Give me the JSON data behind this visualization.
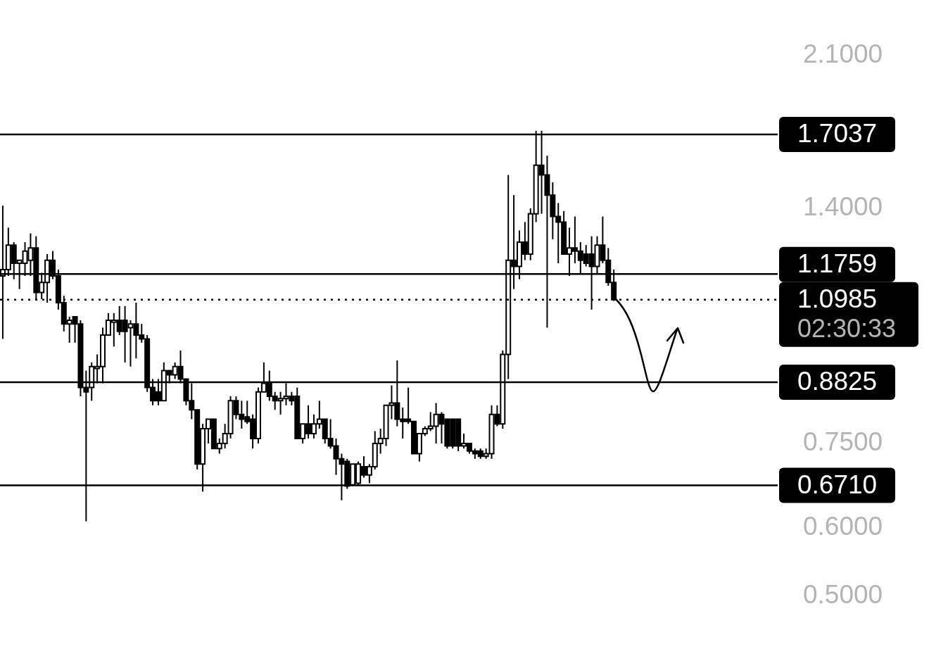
{
  "chart_data": {
    "type": "candlestick",
    "color": "#000000",
    "log": "y",
    "tick_labels": "y",
    "ylim": [
      0.5,
      2.1
    ],
    "yticks": [
      {
        "value": 0.5,
        "label": "0.5000"
      },
      {
        "value": 0.6,
        "label": "0.6000"
      },
      {
        "value": 0.75,
        "label": "0.7500"
      },
      {
        "value": 1.4,
        "label": "1.4000"
      },
      {
        "value": 2.1,
        "label": "2.1000"
      }
    ],
    "ref_lines": [
      {
        "axis": "y",
        "value": 1.7037,
        "label": "1.7037",
        "color": "#000000"
      },
      {
        "axis": "y",
        "value": 1.1759,
        "label": "1.1759",
        "color": "#000000"
      },
      {
        "axis": "y",
        "value": 1.0985,
        "label": "1.0985",
        "color": "#000000",
        "line_style": "dotted"
      },
      {
        "axis": "y",
        "value": 0.8825,
        "label": "0.8825",
        "color": "#000000"
      },
      {
        "axis": "y",
        "value": 0.671,
        "label": "0.6710",
        "color": "#000000"
      }
    ],
    "annotations": [
      "02:30:33"
    ],
    "categories": [
      null,
      null,
      null,
      null,
      null,
      null,
      null,
      null,
      null,
      null,
      null,
      null,
      null,
      null,
      null,
      null,
      null,
      null,
      null,
      null,
      null,
      null,
      null,
      null,
      null,
      null,
      null,
      null,
      null,
      null,
      null,
      null,
      null,
      null,
      null,
      null,
      null,
      null,
      null,
      null,
      null,
      null,
      null,
      null,
      null,
      null,
      null,
      null,
      null,
      null,
      null,
      null,
      null,
      null,
      null,
      null,
      null,
      null,
      null,
      null,
      null,
      null,
      null,
      null,
      null,
      null,
      null,
      null,
      null,
      null,
      null,
      null,
      null,
      null,
      null,
      null,
      null,
      null,
      null,
      null,
      null,
      null,
      null,
      null,
      null,
      null,
      null,
      null,
      null,
      null,
      null,
      null,
      null,
      null,
      null,
      null,
      null,
      null,
      null,
      null,
      null,
      null,
      null,
      null,
      null,
      null,
      null,
      null,
      null,
      null,
      null,
      null,
      null,
      null,
      null,
      null,
      null,
      null,
      null,
      null,
      null,
      null,
      null,
      null,
      null,
      null,
      null,
      null,
      null,
      null,
      null,
      null,
      null,
      null,
      null,
      null,
      null,
      null,
      null,
      null
    ],
    "ohlc": [
      [
        1.17,
        1.41,
        0.99,
        1.19
      ],
      [
        1.19,
        1.33,
        1.17,
        1.27
      ],
      [
        1.27,
        1.28,
        1.16,
        1.21
      ],
      [
        1.21,
        1.22,
        1.13,
        1.22
      ],
      [
        1.21,
        1.28,
        1.17,
        1.25
      ],
      [
        1.22,
        1.31,
        1.17,
        1.26
      ],
      [
        1.26,
        1.3,
        1.1,
        1.12
      ],
      [
        1.12,
        1.18,
        1.1,
        1.15
      ],
      [
        1.15,
        1.24,
        1.09,
        1.22
      ],
      [
        1.22,
        1.25,
        1.16,
        1.17
      ],
      [
        1.17,
        1.19,
        1.07,
        1.09
      ],
      [
        1.09,
        1.11,
        1.01,
        1.03
      ],
      [
        1.03,
        1.05,
        0.98,
        1.04
      ],
      [
        1.05,
        1.05,
        0.98,
        1.03
      ],
      [
        1.03,
        1.04,
        0.85,
        0.87
      ],
      [
        0.87,
        0.91,
        0.61,
        0.86
      ],
      [
        0.87,
        0.93,
        0.84,
        0.92
      ],
      [
        0.915,
        0.95,
        0.88,
        0.92
      ],
      [
        0.92,
        1.02,
        0.88,
        1.0
      ],
      [
        1.0,
        1.06,
        1.0,
        1.04
      ],
      [
        1.035,
        1.06,
        0.97,
        1.04
      ],
      [
        1.04,
        1.08,
        1.0,
        1.01
      ],
      [
        1.04,
        1.08,
        0.93,
        1.01
      ],
      [
        1.02,
        1.04,
        0.92,
        1.03
      ],
      [
        1.03,
        1.09,
        0.94,
        1.0
      ],
      [
        1.0,
        1.03,
        0.98,
        0.99
      ],
      [
        0.99,
        1.0,
        0.86,
        0.87
      ],
      [
        0.87,
        0.89,
        0.83,
        0.84
      ],
      [
        0.86,
        0.89,
        0.83,
        0.84
      ],
      [
        0.84,
        0.93,
        0.84,
        0.91
      ],
      [
        0.91,
        0.91,
        0.88,
        0.9
      ],
      [
        0.9,
        0.93,
        0.89,
        0.92
      ],
      [
        0.92,
        0.96,
        0.88,
        0.89
      ],
      [
        0.89,
        0.89,
        0.83,
        0.84
      ],
      [
        0.84,
        0.88,
        0.8,
        0.82
      ],
      [
        0.82,
        0.82,
        0.7,
        0.71
      ],
      [
        0.71,
        0.79,
        0.66,
        0.78
      ],
      [
        0.78,
        0.8,
        0.75,
        0.8
      ],
      [
        0.8,
        0.8,
        0.74,
        0.74
      ],
      [
        0.74,
        0.76,
        0.73,
        0.75
      ],
      [
        0.75,
        0.79,
        0.74,
        0.77
      ],
      [
        0.77,
        0.85,
        0.76,
        0.84
      ],
      [
        0.84,
        0.85,
        0.8,
        0.81
      ],
      [
        0.81,
        0.84,
        0.78,
        0.8
      ],
      [
        0.805,
        0.84,
        0.79,
        0.795
      ],
      [
        0.8,
        0.81,
        0.74,
        0.76
      ],
      [
        0.76,
        0.87,
        0.75,
        0.86
      ],
      [
        0.86,
        0.93,
        0.86,
        0.88
      ],
      [
        0.88,
        0.91,
        0.84,
        0.85
      ],
      [
        0.85,
        0.86,
        0.82,
        0.84
      ],
      [
        0.84,
        0.86,
        0.81,
        0.845
      ],
      [
        0.845,
        0.88,
        0.83,
        0.85
      ],
      [
        0.85,
        0.86,
        0.83,
        0.84
      ],
      [
        0.85,
        0.87,
        0.76,
        0.76
      ],
      [
        0.76,
        0.79,
        0.75,
        0.79
      ],
      [
        0.79,
        0.83,
        0.76,
        0.77
      ],
      [
        0.77,
        0.81,
        0.76,
        0.79
      ],
      [
        0.79,
        0.84,
        0.78,
        0.8
      ],
      [
        0.8,
        0.8,
        0.75,
        0.76
      ],
      [
        0.76,
        0.8,
        0.74,
        0.745
      ],
      [
        0.745,
        0.76,
        0.69,
        0.72
      ],
      [
        0.72,
        0.73,
        0.645,
        0.71
      ],
      [
        0.715,
        0.72,
        0.665,
        0.67
      ],
      [
        0.672,
        0.71,
        0.67,
        0.71
      ],
      [
        0.675,
        0.715,
        0.67,
        0.71
      ],
      [
        0.705,
        0.725,
        0.685,
        0.69
      ],
      [
        0.69,
        0.71,
        0.675,
        0.705
      ],
      [
        0.705,
        0.775,
        0.7,
        0.75
      ],
      [
        0.75,
        0.78,
        0.73,
        0.76
      ],
      [
        0.76,
        0.83,
        0.745,
        0.83
      ],
      [
        0.83,
        0.875,
        0.8,
        0.835
      ],
      [
        0.835,
        0.935,
        0.785,
        0.8
      ],
      [
        0.8,
        0.825,
        0.76,
        0.795
      ],
      [
        0.8,
        0.87,
        0.79,
        0.795
      ],
      [
        0.795,
        0.795,
        0.73,
        0.73
      ],
      [
        0.73,
        0.77,
        0.715,
        0.77
      ],
      [
        0.77,
        0.785,
        0.765,
        0.78
      ],
      [
        0.78,
        0.815,
        0.775,
        0.785
      ],
      [
        0.785,
        0.835,
        0.75,
        0.81
      ],
      [
        0.81,
        0.815,
        0.75,
        0.79
      ],
      [
        0.8,
        0.8,
        0.74,
        0.745
      ],
      [
        0.8,
        0.8,
        0.74,
        0.745
      ],
      [
        0.8,
        0.8,
        0.735,
        0.745
      ],
      [
        0.745,
        0.77,
        0.74,
        0.75
      ],
      [
        0.75,
        0.75,
        0.73,
        0.735
      ],
      [
        0.735,
        0.74,
        0.72,
        0.73
      ],
      [
        0.735,
        0.74,
        0.72,
        0.725
      ],
      [
        0.725,
        0.74,
        0.72,
        0.73
      ],
      [
        0.73,
        0.83,
        0.72,
        0.81
      ],
      [
        0.81,
        0.83,
        0.785,
        0.79
      ],
      [
        0.79,
        0.96,
        0.78,
        0.95
      ],
      [
        0.95,
        1.53,
        0.89,
        1.22
      ],
      [
        1.22,
        1.45,
        1.13,
        1.2
      ],
      [
        1.2,
        1.32,
        1.16,
        1.28
      ],
      [
        1.28,
        1.35,
        1.22,
        1.24
      ],
      [
        1.24,
        1.4,
        1.22,
        1.38
      ],
      [
        1.38,
        1.72,
        1.35,
        1.57
      ],
      [
        1.57,
        1.72,
        1.38,
        1.53
      ],
      [
        1.53,
        1.61,
        1.02,
        1.45
      ],
      [
        1.45,
        1.5,
        1.29,
        1.37
      ],
      [
        1.37,
        1.42,
        1.21,
        1.35
      ],
      [
        1.35,
        1.39,
        1.24,
        1.24
      ],
      [
        1.24,
        1.33,
        1.17,
        1.26
      ],
      [
        1.26,
        1.37,
        1.21,
        1.25
      ],
      [
        1.25,
        1.28,
        1.175,
        1.22
      ],
      [
        1.24,
        1.27,
        1.2,
        1.21
      ],
      [
        1.24,
        1.3,
        1.07,
        1.2
      ],
      [
        1.2,
        1.3,
        1.175,
        1.27
      ],
      [
        1.27,
        1.37,
        1.21,
        1.22
      ],
      [
        1.22,
        1.26,
        1.14,
        1.15
      ],
      [
        1.15,
        1.19,
        1.095,
        1.0985
      ],
      null,
      null,
      null,
      null,
      null,
      null,
      null,
      null,
      null,
      null,
      null,
      null,
      null,
      null,
      null,
      null,
      null,
      null,
      null,
      null,
      null,
      null,
      null,
      null,
      null,
      null,
      null,
      null,
      null
    ]
  }
}
